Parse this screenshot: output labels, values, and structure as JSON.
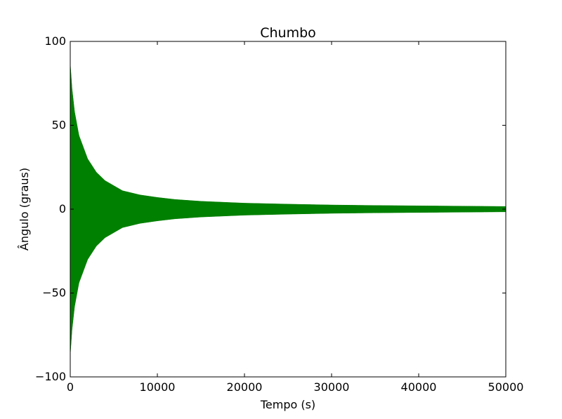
{
  "chart_data": {
    "type": "line",
    "title": "Chumbo",
    "xlabel": "Tempo (s)",
    "ylabel": "Ângulo (graus)",
    "xlim": [
      0,
      50000
    ],
    "ylim": [
      -100,
      100
    ],
    "x_ticks": [
      0,
      10000,
      20000,
      30000,
      40000,
      50000
    ],
    "x_tick_labels": [
      "0",
      "10000",
      "20000",
      "30000",
      "40000",
      "50000"
    ],
    "y_ticks": [
      -100,
      -50,
      0,
      50,
      100
    ],
    "y_tick_labels": [
      "−100",
      "−50",
      "0",
      "50",
      "100"
    ],
    "grid": false,
    "legend": "none",
    "series": [
      {
        "color": "#008000",
        "style": "dense-oscillation",
        "envelope_time": [
          0,
          200,
          500,
          1000,
          2000,
          3000,
          4000,
          5000,
          6000,
          8000,
          10000,
          12000,
          15000,
          20000,
          25000,
          30000,
          35000,
          40000,
          45000,
          50000
        ],
        "envelope_amplitude": [
          87,
          72,
          58,
          44,
          30,
          22,
          17,
          14,
          11,
          8.5,
          7,
          5.8,
          4.7,
          3.6,
          3.0,
          2.5,
          2.2,
          2.0,
          1.8,
          1.6
        ]
      }
    ]
  }
}
